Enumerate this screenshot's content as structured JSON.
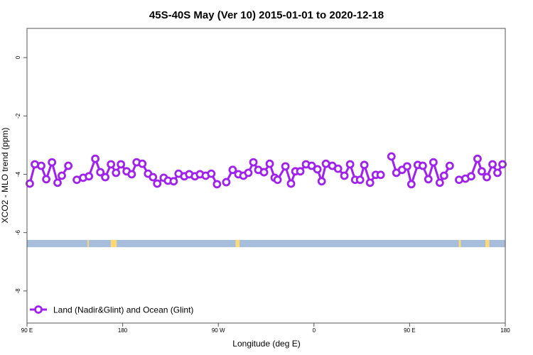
{
  "chart_data": {
    "type": "line",
    "title": "45S-40S May (Ver 10)   2015-01-01 to 2020-12-18",
    "xlabel": "Longitude (deg E)",
    "ylabel": "XCO2 - MLO trend (ppm)",
    "xlim": [
      90,
      450
    ],
    "ylim": [
      -9.1,
      1.0
    ],
    "x_ticks": [
      {
        "value": 90,
        "label": "90 E"
      },
      {
        "value": 180,
        "label": "180"
      },
      {
        "value": 270,
        "label": "90 W"
      },
      {
        "value": 360,
        "label": "0"
      },
      {
        "value": 450,
        "label": "90 E"
      },
      {
        "value": 540,
        "label": "180"
      }
    ],
    "x_tick_values_display": [
      90,
      180,
      270,
      360,
      450,
      540
    ],
    "y_ticks": [
      0,
      -2,
      -4,
      -6,
      -8
    ],
    "grid": false,
    "legend": {
      "placement": "bottom-left",
      "entries": [
        "Land (Nadir&Glint) and Ocean (Glint)"
      ]
    },
    "colors": {
      "series": "#a020f0",
      "ocean": "#a6bddb",
      "land": "#fdd976"
    },
    "series": [
      {
        "name": "Land (Nadir&Glint) and Ocean (Glint)",
        "segments": [
          {
            "x": [
              92.1,
              95.9,
              100.7,
              104.5,
              108.8,
              113.0,
              116.2,
              121.1
            ],
            "y": [
              -4.32,
              -3.66,
              -3.71,
              -4.17,
              -3.59,
              -4.29,
              -4.05,
              -3.71
            ]
          },
          {
            "x": [
              127.5,
              132.3,
              136.6,
              141.4,
              145.2,
              148.9,
              153.2,
              157.0,
              160.7,
              165.0,
              168.8,
              172.5,
              176.8,
              181.1,
              184.8,
              188.0,
              192.9,
              196.1,
              200.4,
              204.1,
              208.4,
              212.1,
              216.4,
              220.2,
              224.5,
              228.7,
              233.0
            ],
            "y": [
              -4.19,
              -4.12,
              -4.07,
              -3.47,
              -3.93,
              -4.1,
              -3.66,
              -3.95,
              -3.66,
              -3.9,
              -4.0,
              -3.59,
              -3.64,
              -3.98,
              -4.1,
              -4.32,
              -4.12,
              -4.22,
              -4.24,
              -3.98,
              -4.07,
              -4.0,
              -4.07,
              -4.0,
              -4.05,
              -3.98,
              -4.34
            ]
          },
          {
            "x": [
              240.0,
              244.8,
              249.1,
              252.9,
              256.6,
              260.4,
              264.1,
              268.4,
              272.7,
              276.4,
              278.6,
              284.5,
              288.7,
              292.0,
              295.7,
              300.0,
              304.3,
              308.6,
              311.8,
              315.0,
              319.8,
              324.1,
              328.9,
              333.2,
              337.0,
              340.7,
              343.9,
              348.2,
              352.5,
              356.2
            ],
            "y": [
              -4.27,
              -3.85,
              -4.0,
              -4.05,
              -3.95,
              -3.59,
              -3.85,
              -3.93,
              -3.64,
              -4.12,
              -4.19,
              -3.73,
              -4.32,
              -3.9,
              -3.9,
              -3.66,
              -3.71,
              -3.83,
              -4.24,
              -3.64,
              -3.71,
              -3.81,
              -4.05,
              -3.66,
              -4.19,
              -4.19,
              -3.68,
              -4.29,
              -4.02,
              -4.02
            ]
          },
          {
            "x": [
              364.3,
              368.0,
              372.3,
              376.1,
              379.3,
              384.1,
              387.9,
              392.1,
              395.9,
              400.7,
              403.9,
              408.2
            ],
            "y": [
              -3.39,
              -3.95,
              -3.85,
              -3.73,
              -4.34,
              -3.68,
              -3.71,
              -4.17,
              -3.59,
              -4.29,
              -4.05,
              -3.71
            ]
          },
          {
            "x": [
              415.2,
              420.0,
              424.3,
              429.1,
              432.3,
              436.1,
              440.4,
              444.1,
              447.9
            ],
            "y": [
              -4.19,
              -4.15,
              -4.07,
              -3.47,
              -3.9,
              -4.1,
              -3.66,
              -3.95,
              -3.66
            ]
          }
        ]
      }
    ],
    "surface_band": {
      "y_range": [
        -6.25,
        -6.5
      ],
      "land_spans": [
        [
          135.5,
          136.5
        ],
        [
          153,
          157.5
        ],
        [
          247,
          250
        ],
        [
          415,
          416.5
        ],
        [
          435,
          438
        ]
      ]
    }
  }
}
